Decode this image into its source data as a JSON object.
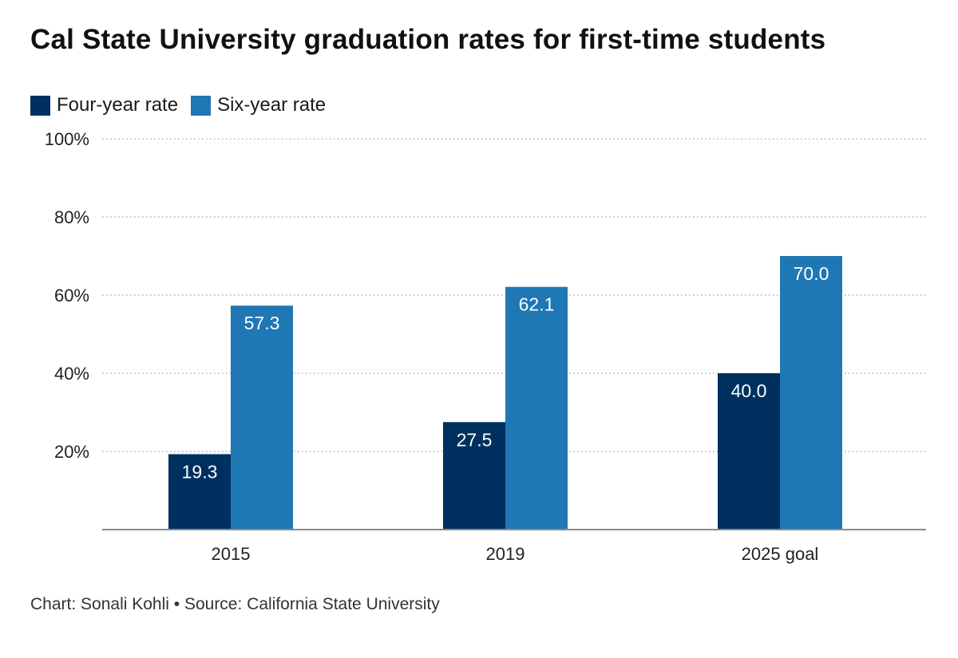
{
  "chart_data": {
    "type": "bar",
    "title": "Cal State University graduation rates for first-time students",
    "categories": [
      "2015",
      "2019",
      "2025 goal"
    ],
    "series": [
      {
        "name": "Four-year rate",
        "color": "#00305f",
        "values": [
          19.3,
          27.5,
          40.0
        ],
        "labels": [
          "19.3",
          "27.5",
          "40.0"
        ]
      },
      {
        "name": "Six-year rate",
        "color": "#1f77b4",
        "values": [
          57.3,
          62.1,
          70.0
        ],
        "labels": [
          "57.3",
          "62.1",
          "70.0"
        ]
      }
    ],
    "ylim": [
      0,
      100
    ],
    "yticks": [
      20,
      40,
      60,
      80,
      100
    ],
    "ytick_labels": [
      "20%",
      "40%",
      "60%",
      "80%",
      "100%"
    ],
    "grid": true,
    "legend": "top-left"
  },
  "credit": "Chart: Sonali Kohli • Source: California State University"
}
